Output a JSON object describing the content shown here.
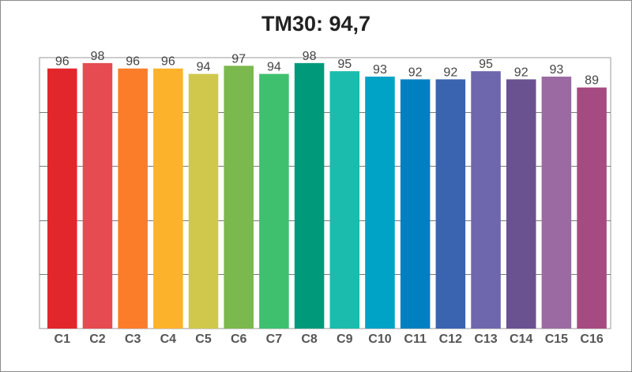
{
  "chart_data": {
    "type": "bar",
    "title": "TM30: 94,7",
    "categories": [
      "C1",
      "C2",
      "C3",
      "C4",
      "C5",
      "C6",
      "C7",
      "C8",
      "C9",
      "C10",
      "C11",
      "C12",
      "C13",
      "C14",
      "C15",
      "C16"
    ],
    "values": [
      96,
      98,
      96,
      96,
      94,
      97,
      94,
      98,
      95,
      93,
      92,
      92,
      95,
      92,
      93,
      89
    ],
    "colors": [
      "#e3262b",
      "#e54b50",
      "#fb7d2a",
      "#fdb22b",
      "#cfc84c",
      "#7bb84d",
      "#3ec06e",
      "#009a7a",
      "#1bbcae",
      "#00a2c5",
      "#0080c0",
      "#3a63b0",
      "#6e67ad",
      "#6a5190",
      "#9b6aa3",
      "#a64b82"
    ],
    "ylim": [
      0,
      100
    ],
    "grid": true,
    "legend": "none"
  }
}
